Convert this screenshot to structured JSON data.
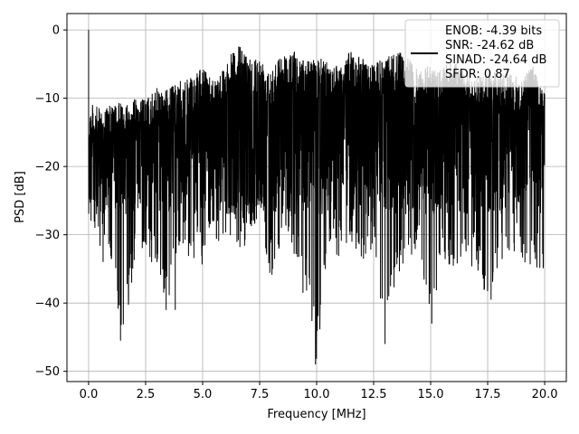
{
  "chart_data": {
    "type": "line",
    "xlabel": "Frequency [MHz]",
    "ylabel": "PSD [dB]",
    "xlim": [
      -0.95,
      20.95
    ],
    "ylim": [
      -51.5,
      2.4
    ],
    "xticks": [
      0.0,
      2.5,
      5.0,
      7.5,
      10.0,
      12.5,
      15.0,
      17.5,
      20.0
    ],
    "xtick_labels": [
      "0.0",
      "2.5",
      "5.0",
      "7.5",
      "10.0",
      "12.5",
      "15.0",
      "17.5",
      "20.0"
    ],
    "yticks": [
      0,
      -10,
      -20,
      -30,
      -40,
      -50
    ],
    "ytick_labels": [
      "0",
      "−10",
      "−20",
      "−30",
      "−40",
      "−50"
    ],
    "grid": true,
    "legend_position": "top-right",
    "series": [
      {
        "name": "ENOB: -4.39 bits\nSNR: -24.62 dB\nSINAD: -24.64 dB\nSFDR: 0.87",
        "legend_lines": [
          "ENOB: -4.39 bits",
          "SNR: -24.62 dB",
          "SINAD: -24.64 dB",
          "SFDR: 0.87"
        ],
        "color": "#000000",
        "envelope": {
          "x": [
            0.0,
            0.5,
            1.0,
            1.5,
            2.0,
            2.5,
            3.0,
            3.5,
            4.0,
            4.5,
            5.0,
            5.5,
            6.0,
            6.5,
            7.0,
            7.5,
            8.0,
            8.5,
            9.0,
            9.5,
            10.0,
            10.5,
            11.0,
            11.5,
            12.0,
            12.5,
            13.0,
            13.5,
            14.0,
            14.5,
            15.0,
            15.5,
            16.0,
            16.5,
            17.0,
            17.5,
            18.0,
            18.5,
            19.0,
            19.5,
            20.0
          ],
          "upper": [
            -10.5,
            -11.5,
            -11.0,
            -10.5,
            -10.0,
            -10.0,
            -8.5,
            -8.5,
            -7.5,
            -7.0,
            -5.5,
            -7.0,
            -5.0,
            -2.0,
            -3.5,
            -4.0,
            -5.0,
            -3.5,
            -3.0,
            -4.5,
            -4.0,
            -4.5,
            -5.0,
            -3.0,
            -4.0,
            -5.0,
            -4.0,
            -3.0,
            -4.0,
            -6.0,
            -5.0,
            -5.5,
            -4.5,
            -6.0,
            -7.0,
            -5.5,
            -6.5,
            -6.0,
            -7.0,
            -5.0,
            -8.5
          ],
          "lower": [
            -30.0,
            -33.5,
            -36.0,
            -45.5,
            -35.0,
            -33.0,
            -36.0,
            -41.0,
            -32.0,
            -33.5,
            -35.0,
            -32.5,
            -30.0,
            -33.0,
            -31.0,
            -28.0,
            -36.5,
            -30.0,
            -33.0,
            -38.0,
            -49.0,
            -32.0,
            -33.5,
            -31.0,
            -34.0,
            -32.0,
            -46.0,
            -35.5,
            -37.0,
            -33.0,
            -43.0,
            -34.0,
            -35.0,
            -33.5,
            -36.0,
            -39.5,
            -34.0,
            -33.0,
            -35.0,
            -36.0,
            -35.0
          ]
        },
        "peaks": [
          [
            0.0,
            0.0
          ],
          [
            1.4,
            -45.5
          ],
          [
            3.4,
            -41.0
          ],
          [
            3.8,
            -41.0
          ],
          [
            6.6,
            -2.5
          ],
          [
            9.4,
            -38.5
          ],
          [
            9.95,
            -49.0
          ],
          [
            13.0,
            -46.0
          ],
          [
            15.05,
            -43.0
          ],
          [
            17.65,
            -39.5
          ]
        ]
      }
    ]
  }
}
